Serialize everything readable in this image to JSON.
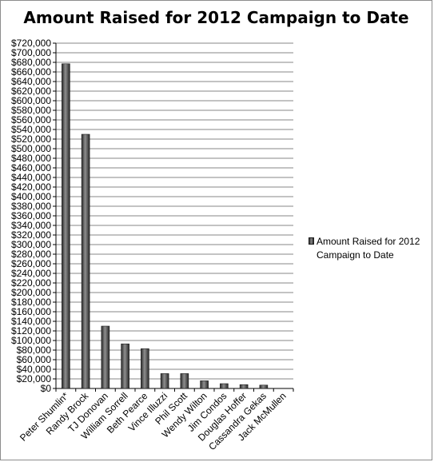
{
  "chart_data": {
    "type": "bar",
    "title": "Amount Raised for 2012 Campaign to Date",
    "categories": [
      "Peter Shumlin*",
      "Randy Brock",
      "TJ Donovan",
      "William Sorrell",
      "Beth Pearce",
      "Vince Illuzzi",
      "Phil Scott",
      "Wendy Wilton",
      "Jim Condos",
      "Douglas Hoffer",
      "Cassandra Gekas",
      "Jack McMullen"
    ],
    "series": [
      {
        "name": "Amount Raised for 2012 Campaign to Date",
        "values": [
          677000,
          530000,
          130000,
          93000,
          83000,
          31000,
          31000,
          16000,
          10000,
          8000,
          7000,
          0
        ]
      }
    ],
    "ylim": [
      0,
      720000
    ],
    "ytick_step": 20000,
    "yticks": [
      "$0",
      "$20,000",
      "$40,000",
      "$60,000",
      "$80,000",
      "$100,000",
      "$120,000",
      "$140,000",
      "$160,000",
      "$180,000",
      "$200,000",
      "$220,000",
      "$240,000",
      "$260,000",
      "$280,000",
      "$300,000",
      "$320,000",
      "$340,000",
      "$360,000",
      "$380,000",
      "$400,000",
      "$420,000",
      "$440,000",
      "$460,000",
      "$480,000",
      "$500,000",
      "$520,000",
      "$540,000",
      "$560,000",
      "$580,000",
      "$600,000",
      "$620,000",
      "$640,000",
      "$660,000",
      "$680,000",
      "$700,000",
      "$720,000"
    ],
    "grid": true,
    "legend_position": "right",
    "bar_color": "#5a5a5a",
    "grid_color": "#878787"
  }
}
